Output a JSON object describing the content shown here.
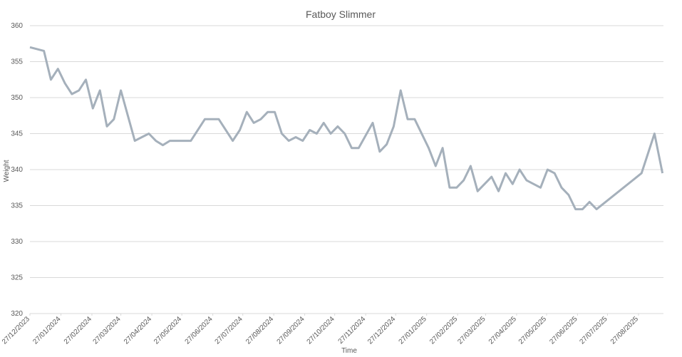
{
  "chart_data": {
    "type": "line",
    "title": "Fatboy Slimmer",
    "x_label": "Time",
    "y_label": "Weight",
    "x": [
      "27/12/2023",
      "10/01/2024",
      "17/01/2024",
      "24/01/2024",
      "31/01/2024",
      "07/02/2024",
      "14/02/2024",
      "21/02/2024",
      "28/02/2024",
      "06/03/2024",
      "13/03/2024",
      "20/03/2024",
      "27/03/2024",
      "03/04/2024",
      "10/04/2024",
      "17/04/2024",
      "24/04/2024",
      "01/05/2024",
      "08/05/2024",
      "15/05/2024",
      "22/05/2024",
      "29/05/2024",
      "05/06/2024",
      "19/06/2024",
      "03/07/2024",
      "17/07/2024",
      "24/07/2024",
      "31/07/2024",
      "07/08/2024",
      "14/08/2024",
      "21/08/2024",
      "28/08/2024",
      "04/09/2024",
      "11/09/2024",
      "18/09/2024",
      "25/09/2024",
      "02/10/2024",
      "09/10/2024",
      "16/10/2024",
      "23/10/2024",
      "30/10/2024",
      "06/11/2024",
      "13/11/2024",
      "20/11/2024",
      "04/12/2024",
      "11/12/2024",
      "18/12/2024",
      "25/12/2024",
      "01/01/2025",
      "08/01/2025",
      "15/01/2025",
      "29/01/2025",
      "05/02/2025",
      "12/02/2025",
      "19/02/2025",
      "26/02/2025",
      "05/03/2025",
      "12/03/2025",
      "19/03/2025",
      "26/03/2025",
      "02/04/2025",
      "09/04/2025",
      "16/04/2025",
      "23/04/2025",
      "30/04/2025",
      "07/05/2025",
      "21/05/2025",
      "28/05/2025",
      "04/06/2025",
      "11/06/2025",
      "18/06/2025",
      "25/06/2025",
      "02/07/2025",
      "09/07/2025",
      "16/07/2025",
      "30/08/2025",
      "12/09/2025",
      "20/09/2025"
    ],
    "series": [
      {
        "name": "Weight",
        "color": "#a5b0bb",
        "values": [
          357,
          356.5,
          352.5,
          354,
          352,
          350.5,
          351,
          352.5,
          348.5,
          351,
          346,
          347,
          351,
          347.5,
          344,
          344.5,
          345,
          344,
          343.4,
          344,
          344,
          344,
          344,
          347,
          347,
          344,
          345.5,
          348,
          346.5,
          347,
          348,
          348,
          345,
          344,
          344.5,
          344,
          345.5,
          345,
          346.5,
          345,
          346,
          345,
          343,
          343,
          346.5,
          342.5,
          343.5,
          346,
          351,
          347,
          347,
          343,
          340.5,
          343,
          337.5,
          337.5,
          338.5,
          340.5,
          337,
          338,
          339,
          337,
          339.5,
          338,
          340,
          338.5,
          337.5,
          340,
          339.5,
          337.5,
          336.5,
          334.5,
          334.5,
          335.5,
          334.5,
          339.5,
          345,
          339.5
        ]
      }
    ],
    "xlim": [
      "27/12/2023",
      "21/09/2025"
    ],
    "xticks": [
      "27/12/2023",
      "27/01/2024",
      "27/02/2024",
      "27/03/2024",
      "27/04/2024",
      "27/05/2024",
      "27/06/2024",
      "27/07/2024",
      "27/08/2024",
      "27/09/2024",
      "27/10/2024",
      "27/11/2024",
      "27/12/2024",
      "27/01/2025",
      "27/02/2025",
      "27/03/2025",
      "27/04/2025",
      "27/05/2025",
      "27/06/2025",
      "27/07/2025",
      "27/08/2025"
    ],
    "ylim": [
      320,
      360
    ],
    "yticks": [
      320,
      325,
      330,
      335,
      340,
      345,
      350,
      355,
      360
    ],
    "grid": true
  }
}
